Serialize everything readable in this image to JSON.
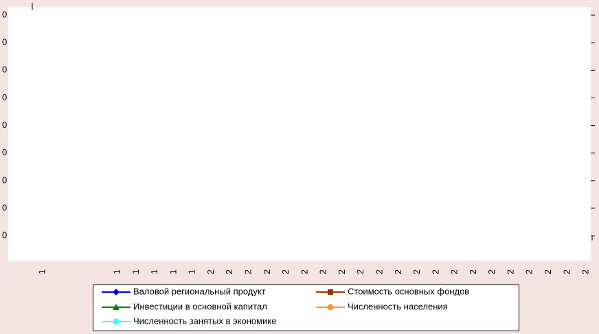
{
  "chart_data": {
    "type": "line",
    "categories": [
      "1",
      null,
      null,
      null,
      "1",
      "1",
      "1",
      "1",
      "1",
      "2",
      "2",
      "2",
      "2",
      "2",
      "2",
      "2",
      "2",
      "2",
      "2",
      "2",
      "2",
      "2",
      "2",
      "2",
      "2",
      "2",
      "2",
      "2",
      "2",
      "2"
    ],
    "ylim": [
      0.08,
      9.3
    ],
    "yticks": [
      {
        "value": 1,
        "label": "0"
      },
      {
        "value": 2,
        "label": "0"
      },
      {
        "value": 3,
        "label": "0"
      },
      {
        "value": 4,
        "label": "0"
      },
      {
        "value": 5,
        "label": "0"
      },
      {
        "value": 6,
        "label": "0"
      },
      {
        "value": 7,
        "label": "0"
      },
      {
        "value": 8,
        "label": "0"
      },
      {
        "value": 9,
        "label": "0"
      }
    ],
    "series": [
      {
        "name": "Валовой региональный продукт",
        "color": "#0000ff",
        "marker": "diamond",
        "values": [
          null,
          null,
          null,
          null,
          null,
          null,
          null,
          null,
          null,
          null,
          null,
          null,
          null,
          null,
          null,
          null,
          null,
          null,
          null,
          null,
          null,
          null,
          null,
          null,
          null,
          null,
          null,
          null,
          null,
          null
        ]
      },
      {
        "name": "Стоимость основных фондов",
        "color": "#993300",
        "marker": "square",
        "values": [
          null,
          null,
          null,
          null,
          null,
          null,
          null,
          null,
          null,
          null,
          null,
          null,
          null,
          null,
          null,
          null,
          null,
          null,
          null,
          null,
          null,
          null,
          null,
          null,
          null,
          null,
          null,
          null,
          null,
          null
        ]
      },
      {
        "name": "Инвестиции в основной капитал",
        "color": "#008000",
        "marker": "triangle",
        "values": [
          null,
          null,
          null,
          null,
          null,
          null,
          null,
          null,
          null,
          null,
          null,
          null,
          null,
          null,
          null,
          null,
          null,
          null,
          null,
          null,
          null,
          null,
          null,
          null,
          null,
          null,
          null,
          null,
          null,
          null
        ]
      },
      {
        "name": "Численность населения",
        "color": "#f79646",
        "marker": "circle",
        "values": [
          null,
          null,
          null,
          null,
          null,
          null,
          null,
          null,
          null,
          null,
          null,
          null,
          null,
          null,
          null,
          null,
          null,
          null,
          null,
          null,
          null,
          null,
          null,
          null,
          null,
          null,
          null,
          null,
          null,
          null
        ]
      },
      {
        "name": "Численность занятых в экономике",
        "color": "#33ffff",
        "marker": "circle",
        "values": [
          null,
          null,
          null,
          null,
          null,
          null,
          null,
          null,
          null,
          null,
          null,
          null,
          null,
          null,
          null,
          null,
          null,
          null,
          null,
          null,
          null,
          null,
          null,
          null,
          null,
          null,
          null,
          null,
          null,
          null
        ]
      }
    ]
  }
}
